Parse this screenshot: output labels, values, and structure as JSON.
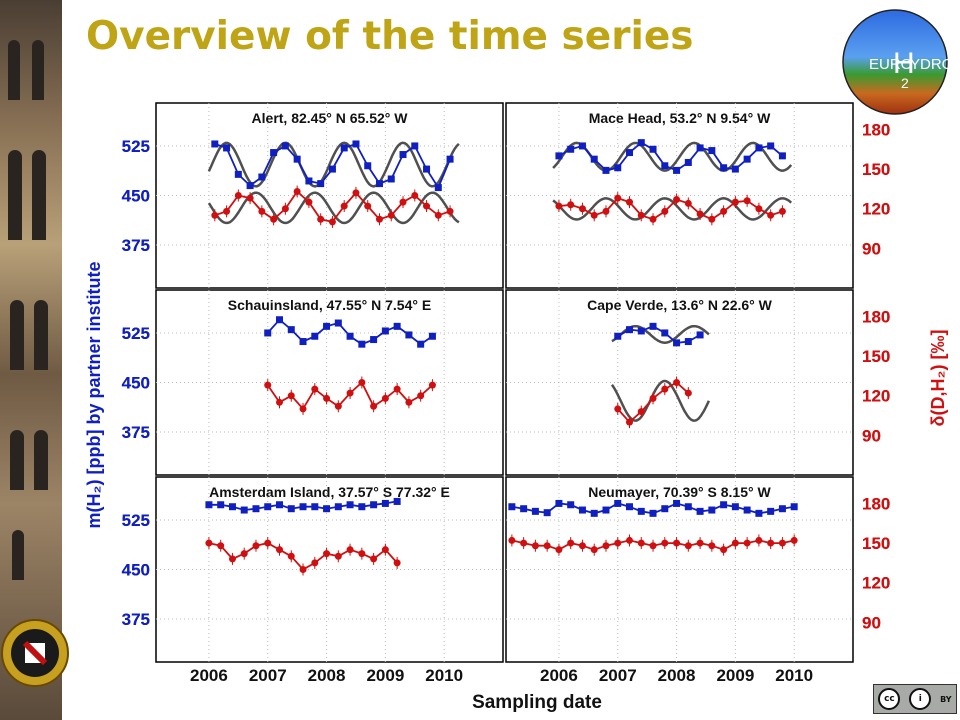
{
  "slide": {
    "title": "Overview of the time series"
  },
  "logo": {
    "top_text": "EURO",
    "big_letter": "H",
    "right_text": "YDROS",
    "subscript": "2"
  },
  "footer": {
    "cc_label": "cc",
    "by_label": "BY"
  },
  "colors": {
    "title": "#bfa415",
    "mixing_ratio": "#1020c0",
    "isotope": "#d01010",
    "fit": "#505050"
  },
  "chart_data": {
    "type": "scatter",
    "xlabel": "Sampling date",
    "ylabel_left": "m(H₂) [ppb] by partner institute",
    "ylabel_right": "δ(D,H₂) [‰]",
    "x_ticks": [
      "2006",
      "2007",
      "2008",
      "2009",
      "2010"
    ],
    "xlim": [
      2005.1,
      2011.0
    ],
    "ylim_left": [
      310,
      590
    ],
    "left_ticks": [
      375,
      450,
      525
    ],
    "ylim_right": [
      60,
      200
    ],
    "right_ticks": [
      90,
      120,
      150,
      180
    ],
    "panels": [
      {
        "label": "Alert, 82.45° N 65.52° W",
        "m_h2": {
          "x": [
            2006.1,
            2006.3,
            2006.5,
            2006.7,
            2006.9,
            2007.1,
            2007.3,
            2007.5,
            2007.7,
            2007.9,
            2008.1,
            2008.3,
            2008.5,
            2008.7,
            2008.9,
            2009.1,
            2009.3,
            2009.5,
            2009.7,
            2009.9,
            2010.1
          ],
          "y": [
            528,
            522,
            482,
            465,
            478,
            515,
            525,
            505,
            472,
            468,
            490,
            522,
            528,
            495,
            468,
            475,
            512,
            525,
            490,
            462,
            505
          ]
        },
        "delta_d": {
          "x": [
            2006.1,
            2006.3,
            2006.5,
            2006.7,
            2006.9,
            2007.1,
            2007.3,
            2007.5,
            2007.7,
            2007.9,
            2008.1,
            2008.3,
            2008.5,
            2008.7,
            2008.9,
            2009.1,
            2009.3,
            2009.5,
            2009.7,
            2009.9,
            2010.1
          ],
          "y": [
            115,
            118,
            130,
            128,
            118,
            112,
            120,
            133,
            125,
            112,
            110,
            122,
            132,
            122,
            112,
            115,
            125,
            130,
            122,
            115,
            118
          ]
        },
        "fit": true
      },
      {
        "label": "Mace Head, 53.2° N 9.54° W",
        "m_h2": {
          "x": [
            2006.0,
            2006.2,
            2006.4,
            2006.6,
            2006.8,
            2007.0,
            2007.2,
            2007.4,
            2007.6,
            2007.8,
            2008.0,
            2008.2,
            2008.4,
            2008.6,
            2008.8,
            2009.0,
            2009.2,
            2009.4,
            2009.6,
            2009.8
          ],
          "y": [
            510,
            520,
            525,
            505,
            488,
            492,
            515,
            530,
            520,
            495,
            488,
            500,
            522,
            518,
            492,
            490,
            505,
            522,
            525,
            510
          ]
        },
        "delta_d": {
          "x": [
            2006.0,
            2006.2,
            2006.4,
            2006.6,
            2006.8,
            2007.0,
            2007.2,
            2007.4,
            2007.6,
            2007.8,
            2008.0,
            2008.2,
            2008.4,
            2008.6,
            2008.8,
            2009.0,
            2009.2,
            2009.4,
            2009.6,
            2009.8
          ],
          "y": [
            122,
            123,
            120,
            115,
            118,
            128,
            125,
            115,
            112,
            118,
            127,
            124,
            116,
            112,
            118,
            125,
            126,
            120,
            115,
            118
          ]
        },
        "fit": true
      },
      {
        "label": "Schauinsland, 47.55° N 7.54° E",
        "m_h2": {
          "x": [
            2007.0,
            2007.2,
            2007.4,
            2007.6,
            2007.8,
            2008.0,
            2008.2,
            2008.4,
            2008.6,
            2008.8,
            2009.0,
            2009.2,
            2009.4,
            2009.6,
            2009.8
          ],
          "y": [
            525,
            545,
            530,
            512,
            520,
            535,
            540,
            520,
            508,
            515,
            528,
            535,
            522,
            508,
            520
          ]
        },
        "delta_d": {
          "x": [
            2007.0,
            2007.2,
            2007.4,
            2007.6,
            2007.8,
            2008.0,
            2008.2,
            2008.4,
            2008.6,
            2008.8,
            2009.0,
            2009.2,
            2009.4,
            2009.6,
            2009.8
          ],
          "y": [
            128,
            115,
            120,
            110,
            125,
            118,
            112,
            122,
            130,
            112,
            118,
            125,
            115,
            120,
            128
          ]
        },
        "fit": false
      },
      {
        "label": "Cape Verde, 13.6° N 22.6° W",
        "m_h2": {
          "x": [
            2007.0,
            2007.2,
            2007.4,
            2007.6,
            2007.8,
            2008.0,
            2008.2,
            2008.4
          ],
          "y": [
            520,
            530,
            528,
            535,
            525,
            510,
            512,
            522
          ]
        },
        "delta_d": {
          "x": [
            2007.0,
            2007.2,
            2007.4,
            2007.6,
            2007.8,
            2008.0,
            2008.2
          ],
          "y": [
            110,
            100,
            108,
            118,
            125,
            130,
            122
          ]
        },
        "fit": true
      },
      {
        "label": "Amsterdam Island, 37.57° S 77.32° E",
        "m_h2": {
          "x": [
            2006.0,
            2006.2,
            2006.4,
            2006.6,
            2006.8,
            2007.0,
            2007.2,
            2007.4,
            2007.6,
            2007.8,
            2008.0,
            2008.2,
            2008.4,
            2008.6,
            2008.8,
            2009.0,
            2009.2
          ],
          "y": [
            548,
            548,
            545,
            540,
            542,
            545,
            548,
            542,
            545,
            545,
            542,
            545,
            548,
            545,
            548,
            550,
            553
          ]
        },
        "delta_d": {
          "x": [
            2006.0,
            2006.2,
            2006.4,
            2006.6,
            2006.8,
            2007.0,
            2007.2,
            2007.4,
            2007.6,
            2007.8,
            2008.0,
            2008.2,
            2008.4,
            2008.6,
            2008.8,
            2009.0,
            2009.2
          ],
          "y": [
            150,
            148,
            138,
            142,
            148,
            150,
            145,
            140,
            130,
            135,
            142,
            140,
            145,
            142,
            138,
            145,
            135
          ]
        },
        "fit": false
      },
      {
        "label": "Neumayer, 70.39° S 8.15° W",
        "m_h2": {
          "x": [
            2005.2,
            2005.4,
            2005.6,
            2005.8,
            2006.0,
            2006.2,
            2006.4,
            2006.6,
            2006.8,
            2007.0,
            2007.2,
            2007.4,
            2007.6,
            2007.8,
            2008.0,
            2008.2,
            2008.4,
            2008.6,
            2008.8,
            2009.0,
            2009.2,
            2009.4,
            2009.6,
            2009.8,
            2010.0
          ],
          "y": [
            545,
            542,
            538,
            536,
            550,
            548,
            540,
            535,
            540,
            550,
            545,
            538,
            535,
            542,
            550,
            545,
            538,
            540,
            548,
            545,
            540,
            535,
            538,
            542,
            545
          ]
        },
        "delta_d": {
          "x": [
            2005.2,
            2005.4,
            2005.6,
            2005.8,
            2006.0,
            2006.2,
            2006.4,
            2006.6,
            2006.8,
            2007.0,
            2007.2,
            2007.4,
            2007.6,
            2007.8,
            2008.0,
            2008.2,
            2008.4,
            2008.6,
            2008.8,
            2009.0,
            2009.2,
            2009.4,
            2009.6,
            2009.8,
            2010.0
          ],
          "y": [
            152,
            150,
            148,
            148,
            145,
            150,
            148,
            145,
            148,
            150,
            152,
            150,
            148,
            150,
            150,
            148,
            150,
            148,
            145,
            150,
            150,
            152,
            150,
            150,
            152
          ]
        },
        "fit": false
      }
    ]
  }
}
